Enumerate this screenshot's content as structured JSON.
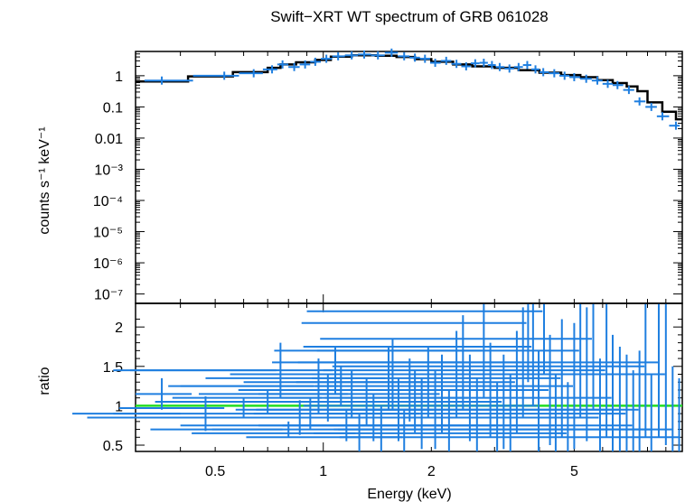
{
  "chart_data": [
    {
      "type": "line",
      "title": "Swift−XRT WT spectrum of GRB 061028",
      "xlabel": "",
      "ylabel": "counts s⁻¹ keV⁻¹",
      "xscale": "log",
      "yscale": "log",
      "xlim": [
        0.3,
        10.0
      ],
      "ylim": [
        5e-08,
        6.0
      ],
      "ytick_labels": [
        "1",
        "0.1",
        "0.01",
        "10⁻³",
        "10⁻⁴",
        "10⁻⁵",
        "10⁻⁶",
        "10⁻⁷"
      ],
      "ytick_values": [
        1,
        0.1,
        0.01,
        0.001,
        0.0001,
        1e-05,
        1e-06,
        1e-07
      ],
      "colors": {
        "data": "#1f7fe0",
        "model": "#000000"
      },
      "series": [
        {
          "name": "data",
          "style": "crosses",
          "points": [
            [
              0.355,
              0.7
            ],
            [
              0.53,
              1.0
            ],
            [
              0.64,
              1.2
            ],
            [
              0.72,
              1.6
            ],
            [
              0.77,
              2.3
            ],
            [
              0.83,
              1.9
            ],
            [
              0.89,
              2.3
            ],
            [
              0.95,
              2.8
            ],
            [
              1.02,
              3.5
            ],
            [
              1.1,
              4.2
            ],
            [
              1.2,
              4.5
            ],
            [
              1.3,
              4.8
            ],
            [
              1.42,
              4.5
            ],
            [
              1.55,
              5.5
            ],
            [
              1.68,
              4.2
            ],
            [
              1.8,
              3.8
            ],
            [
              1.92,
              3.5
            ],
            [
              2.05,
              2.6
            ],
            [
              2.2,
              3.0
            ],
            [
              2.35,
              2.4
            ],
            [
              2.5,
              2.0
            ],
            [
              2.65,
              2.5
            ],
            [
              2.8,
              2.6
            ],
            [
              2.95,
              2.2
            ],
            [
              3.1,
              1.9
            ],
            [
              3.3,
              1.7
            ],
            [
              3.5,
              1.9
            ],
            [
              3.7,
              2.2
            ],
            [
              3.9,
              1.6
            ],
            [
              4.1,
              1.3
            ],
            [
              4.4,
              1.2
            ],
            [
              4.7,
              1.0
            ],
            [
              5.0,
              0.9
            ],
            [
              5.4,
              0.8
            ],
            [
              5.8,
              0.7
            ],
            [
              6.2,
              0.55
            ],
            [
              6.6,
              0.5
            ],
            [
              7.1,
              0.35
            ],
            [
              7.6,
              0.15
            ],
            [
              8.2,
              0.1
            ],
            [
              8.8,
              0.05
            ],
            [
              9.6,
              0.025
            ]
          ]
        },
        {
          "name": "model",
          "style": "step",
          "points": [
            [
              0.3,
              0.65
            ],
            [
              0.42,
              0.95
            ],
            [
              0.56,
              1.3
            ],
            [
              0.7,
              1.8
            ],
            [
              0.76,
              2.3
            ],
            [
              0.84,
              2.7
            ],
            [
              0.95,
              3.2
            ],
            [
              1.05,
              4.1
            ],
            [
              1.2,
              4.5
            ],
            [
              1.4,
              4.4
            ],
            [
              1.6,
              4.0
            ],
            [
              1.8,
              3.4
            ],
            [
              2.0,
              2.8
            ],
            [
              2.3,
              2.3
            ],
            [
              2.6,
              2.0
            ],
            [
              3.0,
              1.8
            ],
            [
              3.5,
              1.5
            ],
            [
              4.0,
              1.25
            ],
            [
              4.6,
              1.05
            ],
            [
              5.2,
              0.9
            ],
            [
              5.8,
              0.72
            ],
            [
              6.4,
              0.58
            ],
            [
              7.0,
              0.45
            ],
            [
              7.5,
              0.32
            ],
            [
              8.0,
              0.14
            ],
            [
              8.8,
              0.07
            ],
            [
              9.6,
              0.04
            ],
            [
              10.0,
              0.04
            ]
          ]
        }
      ]
    },
    {
      "type": "scatter",
      "title": "",
      "xlabel": "Energy (keV)",
      "ylabel": "ratio",
      "xscale": "log",
      "yscale": "linear",
      "xlim": [
        0.3,
        10.0
      ],
      "ylim": [
        0.42,
        2.3
      ],
      "xtick_labels": [
        "0.5",
        "1",
        "2",
        "5"
      ],
      "xtick_values": [
        0.5,
        1,
        2,
        5
      ],
      "ytick_labels": [
        "0.5",
        "1",
        "1.5",
        "2"
      ],
      "ytick_values": [
        0.5,
        1,
        1.5,
        2
      ],
      "reference_line": {
        "y": 1.0,
        "color": "#22dd22"
      },
      "colors": {
        "data": "#1f7fe0"
      },
      "series": [
        {
          "name": "ratio",
          "points": [
            [
              0.355,
              1.15,
              0.3,
              0.43,
              0.2
            ],
            [
              0.47,
              0.9,
              0.2,
              0.4,
              0.22
            ],
            [
              0.6,
              0.97,
              0.27,
              0.53,
              0.13
            ],
            [
              0.7,
              1.05,
              0.37,
              0.65,
              0.15
            ],
            [
              0.76,
              1.45,
              0.26,
              0.74,
              0.35
            ],
            [
              0.8,
              0.7,
              0.33,
              0.77,
              0.1
            ],
            [
              0.86,
              0.85,
              0.22,
              0.82,
              0.22
            ],
            [
              0.92,
              0.9,
              0.26,
              0.87,
              0.2
            ],
            [
              0.97,
              1.25,
              0.4,
              0.94,
              0.35
            ],
            [
              1.03,
              1.1,
              0.38,
              0.99,
              0.3
            ],
            [
              1.08,
              1.45,
              0.29,
              1.06,
              0.3
            ],
            [
              1.12,
              1.25,
              0.37,
              1.1,
              0.25
            ],
            [
              1.16,
              0.75,
              0.4,
              1.14,
              0.2
            ],
            [
              1.2,
              1.15,
              0.45,
              1.17,
              0.3
            ],
            [
              1.26,
              0.65,
              0.43,
              1.23,
              0.25
            ],
            [
              1.32,
              1.05,
              0.34,
              1.29,
              0.3
            ],
            [
              1.38,
              0.85,
              0.46,
              1.36,
              0.3
            ],
            [
              1.45,
              0.7,
              0.49,
              1.42,
              0.3
            ],
            [
              1.52,
              1.35,
              0.47,
              1.49,
              0.4
            ],
            [
              1.56,
              1.4,
              0.55,
              1.54,
              0.45
            ],
            [
              1.62,
              0.95,
              0.57,
              1.6,
              0.4
            ],
            [
              1.68,
              0.6,
              0.61,
              1.66,
              0.35
            ],
            [
              1.74,
              1.2,
              0.58,
              1.72,
              0.4
            ],
            [
              1.8,
              1.05,
              0.6,
              1.77,
              0.4
            ],
            [
              1.88,
              0.9,
              0.64,
              1.85,
              0.45
            ],
            [
              1.96,
              1.3,
              0.6,
              1.93,
              0.45
            ],
            [
              2.05,
              0.95,
              0.65,
              2.02,
              0.5
            ],
            [
              2.14,
              1.15,
              0.66,
              2.11,
              0.5
            ],
            [
              2.24,
              0.75,
              0.66,
              2.2,
              0.45
            ],
            [
              2.35,
              1.4,
              0.67,
              2.32,
              0.55
            ],
            [
              2.45,
              1.55,
              0.72,
              2.42,
              0.6
            ],
            [
              2.56,
              1.1,
              0.76,
              2.53,
              0.55
            ],
            [
              2.68,
              0.85,
              0.74,
              2.65,
              0.5
            ],
            [
              2.8,
              1.7,
              0.73,
              2.77,
              0.6
            ],
            [
              2.92,
              1.2,
              0.8,
              2.89,
              0.6
            ],
            [
              3.05,
              0.75,
              0.77,
              3.01,
              0.55
            ],
            [
              3.18,
              1.05,
              0.81,
              3.14,
              0.6
            ],
            [
              3.32,
              0.85,
              0.81,
              3.28,
              0.55
            ],
            [
              3.46,
              1.3,
              0.84,
              3.42,
              0.65
            ],
            [
              3.6,
              1.55,
              0.85,
              3.56,
              0.7
            ],
            [
              3.72,
              2.05,
              0.87,
              3.68,
              0.75
            ],
            [
              3.84,
              1.75,
              0.88,
              3.8,
              0.75
            ],
            [
              3.98,
              1.0,
              0.88,
              3.94,
              0.7
            ],
            [
              4.12,
              2.2,
              0.9,
              4.08,
              0.8
            ],
            [
              4.28,
              1.2,
              0.91,
              4.24,
              0.7
            ],
            [
              4.44,
              0.75,
              0.92,
              4.4,
              0.65
            ],
            [
              4.62,
              1.35,
              0.93,
              4.58,
              0.75
            ],
            [
              4.8,
              0.65,
              0.94,
              4.76,
              0.65
            ],
            [
              5.0,
              1.25,
              0.95,
              4.96,
              0.8
            ],
            [
              5.2,
              1.7,
              0.96,
              5.16,
              0.85
            ],
            [
              5.42,
              1.4,
              0.97,
              5.38,
              0.85
            ],
            [
              5.65,
              1.85,
              0.98,
              5.6,
              0.9
            ],
            [
              5.9,
              0.85,
              0.99,
              5.85,
              0.75
            ],
            [
              6.15,
              1.45,
              1.0,
              6.1,
              0.85
            ],
            [
              6.4,
              1.1,
              1.01,
              6.35,
              0.8
            ],
            [
              6.7,
              0.95,
              1.02,
              6.65,
              0.8
            ],
            [
              7.0,
              0.9,
              1.03,
              6.95,
              0.75
            ],
            [
              7.3,
              0.75,
              1.04,
              7.25,
              0.7
            ],
            [
              7.6,
              0.95,
              1.05,
              7.55,
              0.75
            ],
            [
              7.9,
              1.5,
              1.06,
              7.85,
              0.9
            ],
            [
              8.2,
              0.7,
              1.07,
              8.15,
              0.7
            ],
            [
              8.6,
              1.55,
              1.08,
              8.55,
              0.95
            ],
            [
              9.0,
              1.4,
              1.09,
              8.95,
              0.9
            ],
            [
              9.4,
              0.7,
              1.1,
              9.35,
              0.8
            ],
            [
              9.8,
              0.6,
              1.11,
              9.75,
              0.75
            ]
          ]
        }
      ]
    }
  ]
}
